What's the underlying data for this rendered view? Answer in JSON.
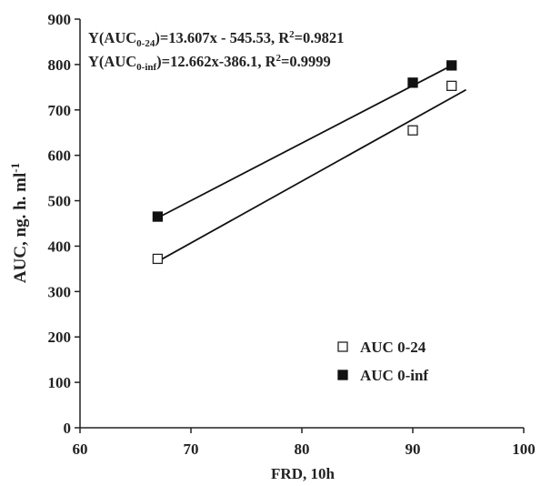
{
  "chart_data": {
    "type": "scatter",
    "title": "",
    "xlabel": "FRD, 10h",
    "ylabel": {
      "main": "AUC, ng. h. ml",
      "sup": "-1"
    },
    "xlim": [
      60,
      100
    ],
    "ylim": [
      0,
      900
    ],
    "xticks": [
      60,
      70,
      80,
      90,
      100
    ],
    "yticks": [
      0,
      100,
      200,
      300,
      400,
      500,
      600,
      700,
      800,
      900
    ],
    "grid": false,
    "legend_position": "bottom-right",
    "series": [
      {
        "name": "AUC 0-24",
        "marker": "open-square",
        "color": "#222222",
        "points": [
          [
            67.0,
            372
          ],
          [
            90.0,
            655
          ],
          [
            93.5,
            753
          ]
        ],
        "fit": {
          "slope": 13.607,
          "intercept": -545.53,
          "x_range": [
            67.0,
            94.8
          ]
        }
      },
      {
        "name": "AUC 0-inf",
        "marker": "filled-square",
        "color": "#111111",
        "points": [
          [
            67.0,
            465
          ],
          [
            90.0,
            760
          ],
          [
            93.5,
            798
          ]
        ],
        "fit": {
          "slope": 12.662,
          "intercept": -386.1,
          "x_range": [
            67.0,
            93.8
          ]
        }
      }
    ],
    "annotations": [
      {
        "pre": "Y(AUC",
        "sub": "0-24",
        "mid": ")=13.607x - 545.53, R",
        "sup": "2",
        "post": "=0.9821"
      },
      {
        "pre": "Y(AUC",
        "sub": "0-inf",
        "mid": ")=12.662x-386.1, R",
        "sup": "2",
        "post": "=0.9999"
      }
    ]
  }
}
